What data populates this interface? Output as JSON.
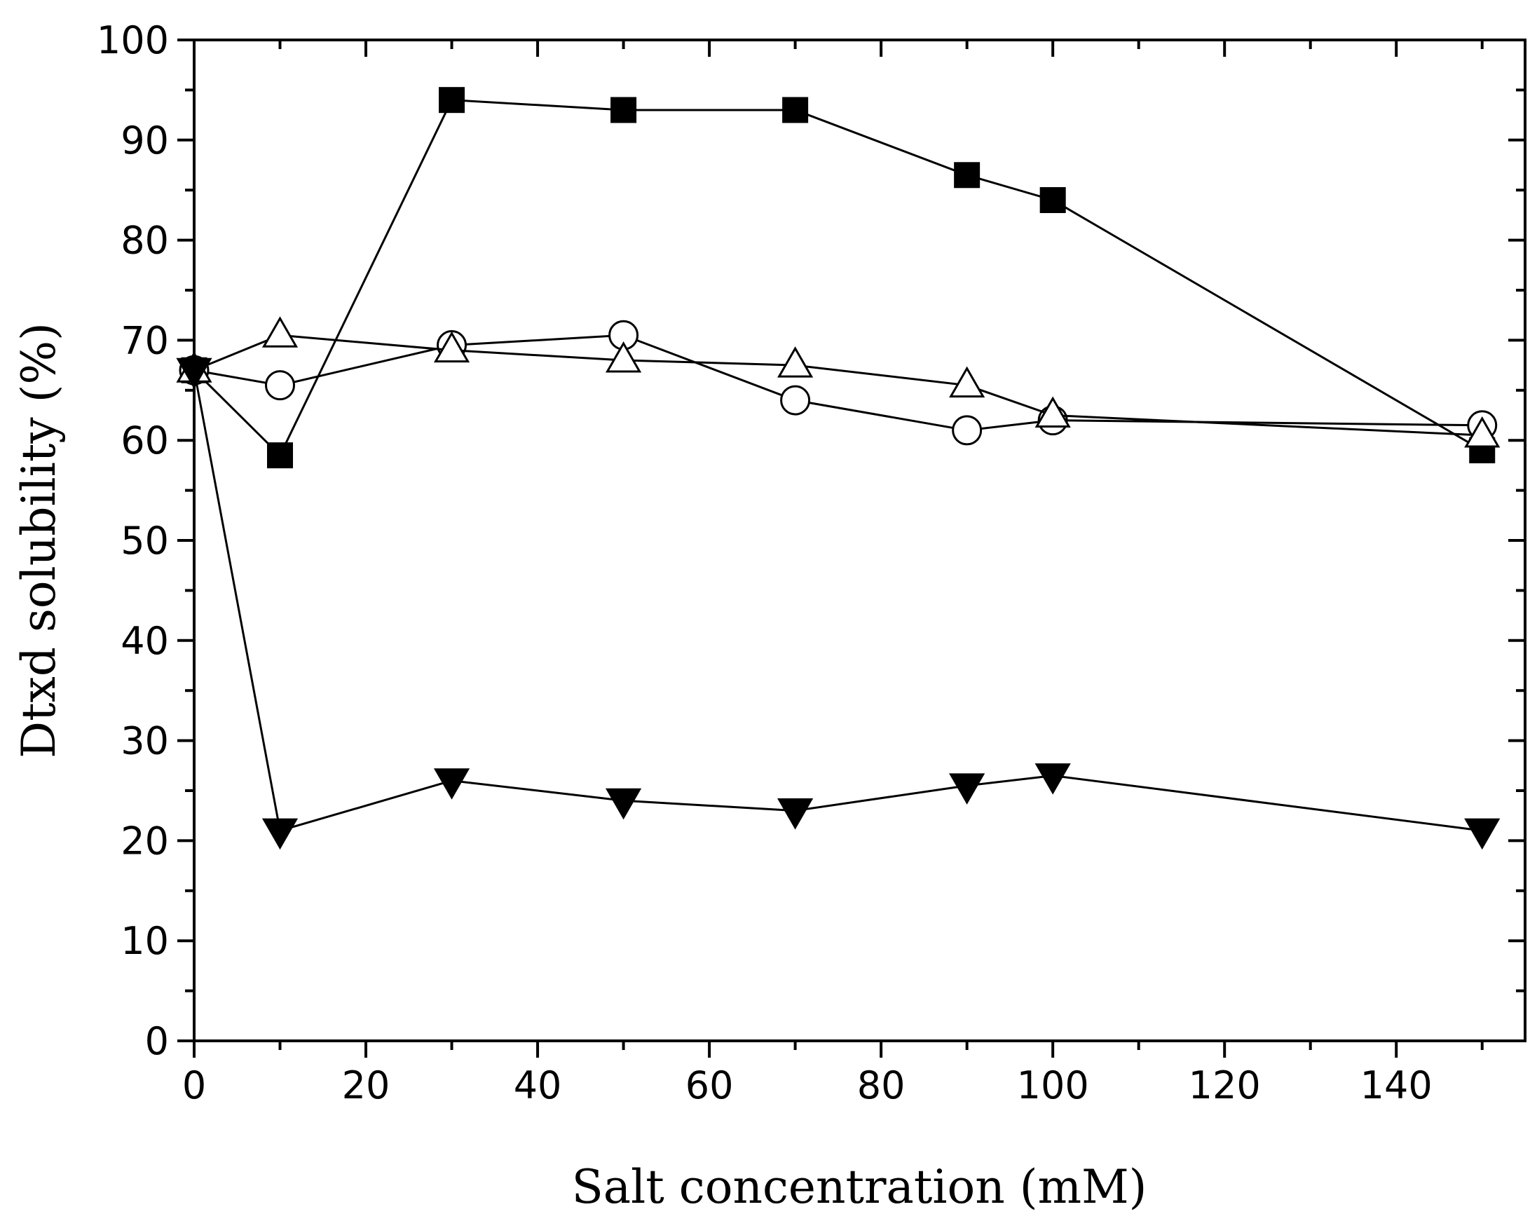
{
  "chart_data": {
    "type": "line",
    "title": "",
    "xlabel": "Salt concentration (mM)",
    "ylabel": "Dtxd solubility (%)",
    "xlim": [
      0,
      155
    ],
    "ylim": [
      0,
      100
    ],
    "xticks": [
      0,
      20,
      40,
      60,
      80,
      100,
      120,
      140
    ],
    "yticks": [
      0,
      10,
      20,
      30,
      40,
      50,
      60,
      70,
      80,
      90,
      100
    ],
    "grid": false,
    "legend": "none",
    "x": [
      0,
      10,
      30,
      50,
      70,
      90,
      100,
      150
    ],
    "series": [
      {
        "name": "filled-square",
        "marker": "square",
        "filled": true,
        "values": [
          67,
          58.5,
          94,
          93,
          93,
          86.5,
          84,
          59
        ]
      },
      {
        "name": "open-circle",
        "marker": "circle",
        "filled": false,
        "values": [
          67,
          65.5,
          69.5,
          70.5,
          64,
          61,
          62,
          61.5
        ]
      },
      {
        "name": "open-triangle",
        "marker": "triangle-up",
        "filled": false,
        "values": [
          67,
          70.5,
          69,
          68,
          67.5,
          65.5,
          62.5,
          60.5
        ]
      },
      {
        "name": "filled-down-triangle",
        "marker": "triangle-down",
        "filled": true,
        "values": [
          67,
          21,
          26,
          24,
          23,
          25.5,
          26.5,
          21
        ]
      }
    ],
    "colors": {
      "ink": "#000000",
      "background": "#ffffff"
    }
  }
}
